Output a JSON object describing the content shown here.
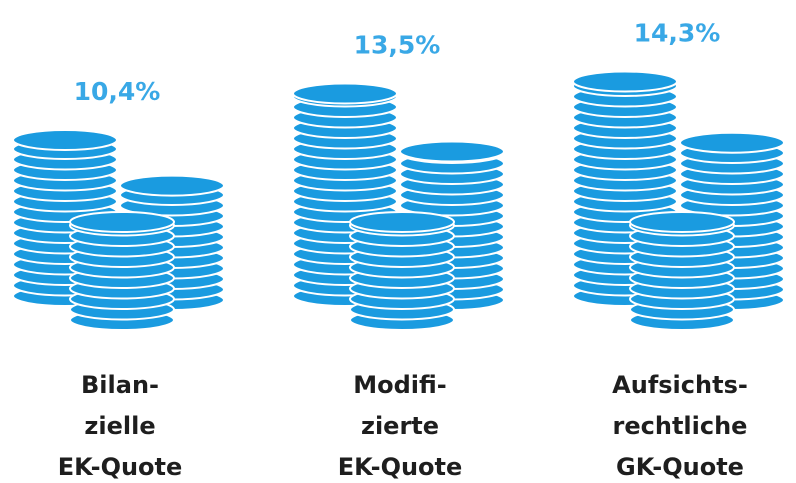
{
  "chart_data": {
    "type": "pictogram",
    "categories": [
      [
        "Bilan-",
        "zielle",
        "EK-Quote"
      ],
      [
        "Modifi-",
        "zierte",
        "EK-Quote"
      ],
      [
        "Aufsichts-",
        "rechtliche",
        "GK-Quote"
      ]
    ],
    "values": [
      10.4,
      13.5,
      14.3
    ],
    "value_labels": [
      "10,4%",
      "13,5%",
      "14,3%"
    ],
    "color": "#1a9be0"
  }
}
